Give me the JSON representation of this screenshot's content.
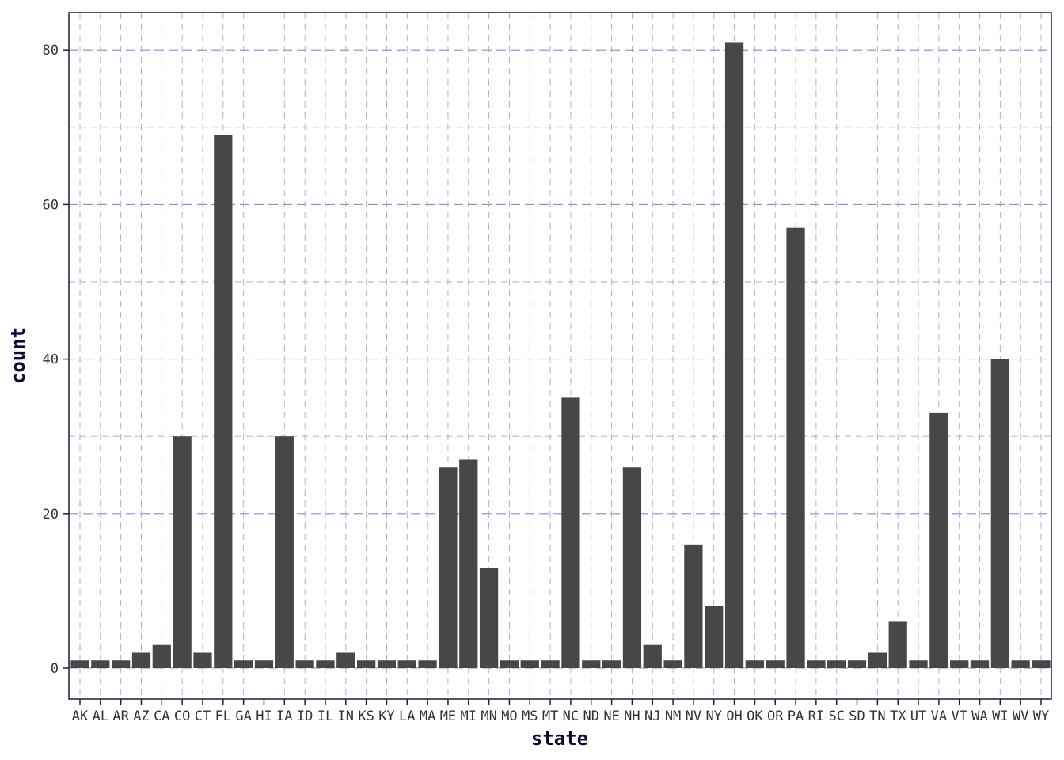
{
  "chart_data": {
    "type": "bar",
    "xlabel": "state",
    "ylabel": "count",
    "ylim": [
      -4,
      84
    ],
    "yticks": [
      0,
      20,
      40,
      60,
      80
    ],
    "grid": true,
    "categories": [
      "AK",
      "AL",
      "AR",
      "AZ",
      "CA",
      "CO",
      "CT",
      "FL",
      "GA",
      "HI",
      "IA",
      "ID",
      "IL",
      "IN",
      "KS",
      "KY",
      "LA",
      "MA",
      "ME",
      "MI",
      "MN",
      "MO",
      "MS",
      "MT",
      "NC",
      "ND",
      "NE",
      "NH",
      "NJ",
      "NM",
      "NV",
      "NY",
      "OH",
      "OK",
      "OR",
      "PA",
      "RI",
      "SC",
      "SD",
      "TN",
      "TX",
      "UT",
      "VA",
      "VT",
      "WA",
      "WI",
      "WV",
      "WY"
    ],
    "values": [
      1,
      1,
      1,
      2,
      3,
      30,
      2,
      69,
      1,
      1,
      30,
      1,
      1,
      2,
      1,
      1,
      1,
      1,
      26,
      27,
      13,
      1,
      1,
      1,
      35,
      1,
      1,
      26,
      3,
      1,
      16,
      8,
      81,
      1,
      1,
      57,
      1,
      1,
      1,
      2,
      6,
      1,
      33,
      1,
      1,
      40,
      1,
      1
    ],
    "colors": {
      "bar": "#474747",
      "grid": "#8c8cc8",
      "border": "#1a1a3a"
    }
  }
}
